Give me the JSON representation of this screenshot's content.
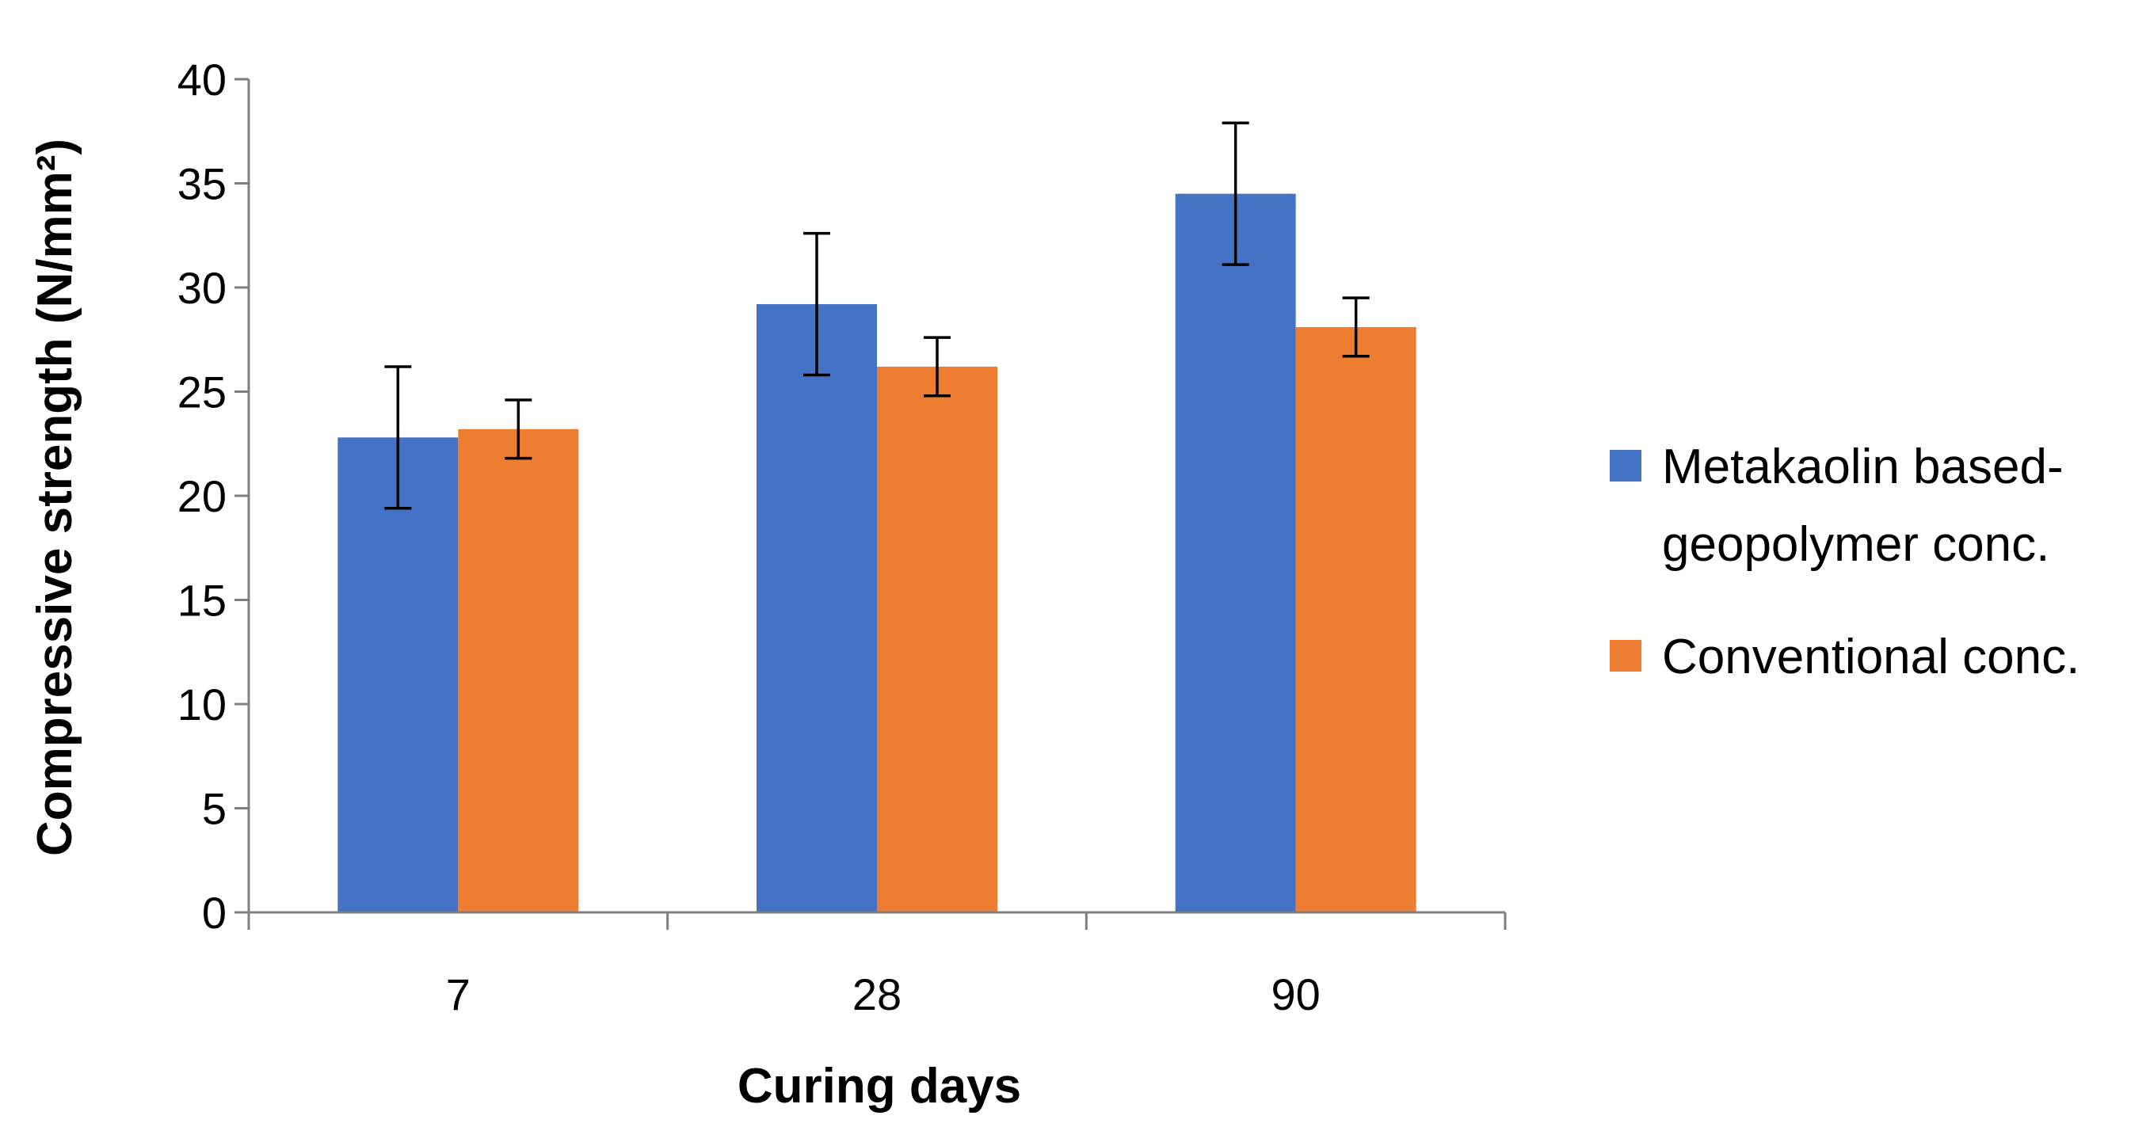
{
  "chart_data": {
    "type": "bar",
    "categories": [
      "7",
      "28",
      "90"
    ],
    "series": [
      {
        "name": "Metakaolin based-geopolymer conc.",
        "legend_lines": [
          "Metakaolin based-",
          "geopolymer conc."
        ],
        "color": "#4472C4",
        "values": [
          22.8,
          29.2,
          34.5
        ],
        "error_low": [
          19.4,
          25.8,
          31.1
        ],
        "error_high": [
          26.2,
          32.6,
          37.9
        ]
      },
      {
        "name": "Conventional conc.",
        "legend_lines": [
          "Conventional conc."
        ],
        "color": "#ED7D31",
        "values": [
          23.2,
          26.2,
          28.1
        ],
        "error_low": [
          21.8,
          24.8,
          26.7
        ],
        "error_high": [
          24.6,
          27.6,
          29.5
        ]
      }
    ],
    "xlabel": "Curing days",
    "ylabel": "Compressive strength (N/mm²)",
    "ylim": [
      0,
      40
    ],
    "yticks": [
      "0",
      "5",
      "10",
      "15",
      "20",
      "25",
      "30",
      "35",
      "40"
    ],
    "grid": false,
    "legend_position": "right"
  }
}
